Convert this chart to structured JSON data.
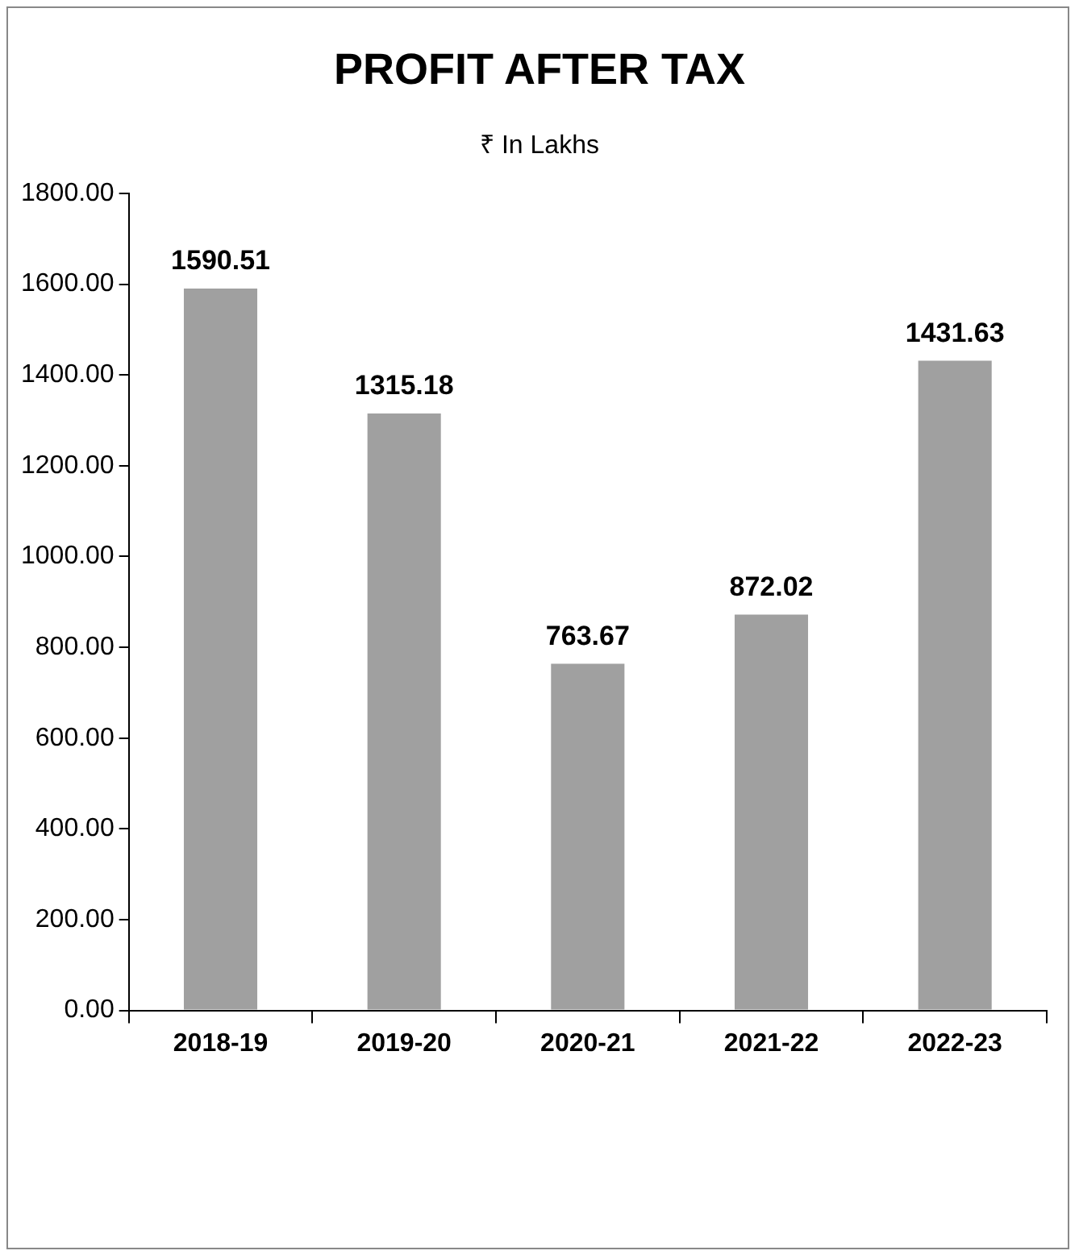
{
  "chart_data": {
    "type": "bar",
    "title": "PROFIT AFTER TAX",
    "subtitle": "₹ In Lakhs",
    "categories": [
      "2018-19",
      "2019-20",
      "2020-21",
      "2021-22",
      "2022-23"
    ],
    "values": [
      1590.51,
      1315.18,
      763.67,
      872.02,
      1431.63
    ],
    "color": "#a0a0a0",
    "ylim": [
      0,
      1800
    ],
    "yticks": [
      {
        "value": 0,
        "label": "0.00"
      },
      {
        "value": 200,
        "label": "200.00"
      },
      {
        "value": 400,
        "label": "400.00"
      },
      {
        "value": 600,
        "label": "600.00"
      },
      {
        "value": 800,
        "label": "800.00"
      },
      {
        "value": 1000,
        "label": "1000.00"
      },
      {
        "value": 1200,
        "label": "1200.00"
      },
      {
        "value": 1400,
        "label": "1400.00"
      },
      {
        "value": 1600,
        "label": "1600.00"
      },
      {
        "value": 1800,
        "label": "1800.00"
      }
    ],
    "grid": false,
    "data_labels": true
  }
}
